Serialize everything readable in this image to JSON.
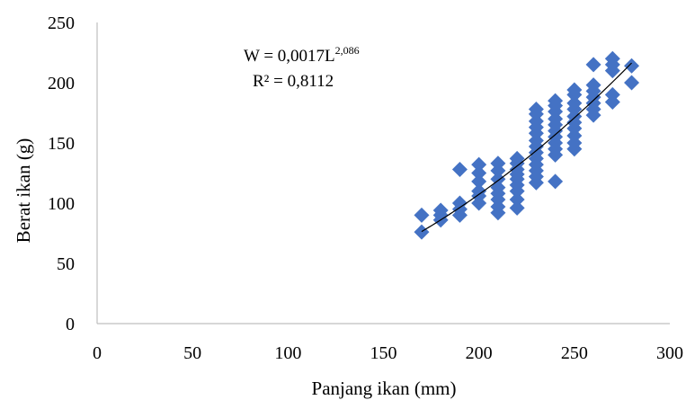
{
  "chart_data": {
    "type": "scatter",
    "xlabel": "Panjang ikan (mm)",
    "ylabel": "Berat ikan (g)",
    "xlim": [
      0,
      300
    ],
    "ylim": [
      0,
      250
    ],
    "x_ticks": [
      0,
      50,
      100,
      150,
      200,
      250,
      300
    ],
    "y_ticks": [
      0,
      50,
      100,
      150,
      200,
      250
    ],
    "x_tick_labels": [
      "0",
      "50",
      "100",
      "150",
      "200",
      "250",
      "300"
    ],
    "y_tick_labels": [
      "0",
      "50",
      "100",
      "150",
      "200",
      "250"
    ],
    "grid": false,
    "legend": "none",
    "marker": "diamond",
    "marker_color": "#4472C4",
    "trendline_color": "#000000",
    "trendline": {
      "type": "power",
      "a": 0.0017,
      "b": 2.086,
      "x_range": [
        170,
        280
      ],
      "equation_prefix": "W = 0,0017L",
      "equation_exponent": "2,086",
      "r_squared_label": "R² = 0,8112"
    },
    "points": [
      [
        170,
        76
      ],
      [
        170,
        90
      ],
      [
        180,
        86
      ],
      [
        180,
        90
      ],
      [
        180,
        94
      ],
      [
        190,
        90
      ],
      [
        190,
        95
      ],
      [
        190,
        100
      ],
      [
        190,
        128
      ],
      [
        200,
        100
      ],
      [
        200,
        106
      ],
      [
        200,
        110
      ],
      [
        200,
        118
      ],
      [
        200,
        125
      ],
      [
        200,
        132
      ],
      [
        210,
        92
      ],
      [
        210,
        97
      ],
      [
        210,
        103
      ],
      [
        210,
        108
      ],
      [
        210,
        113
      ],
      [
        210,
        120
      ],
      [
        210,
        127
      ],
      [
        210,
        133
      ],
      [
        220,
        96
      ],
      [
        220,
        103
      ],
      [
        220,
        110
      ],
      [
        220,
        115
      ],
      [
        220,
        120
      ],
      [
        220,
        124
      ],
      [
        220,
        128
      ],
      [
        220,
        133
      ],
      [
        220,
        137
      ],
      [
        230,
        117
      ],
      [
        230,
        122
      ],
      [
        230,
        127
      ],
      [
        230,
        132
      ],
      [
        230,
        137
      ],
      [
        230,
        142
      ],
      [
        230,
        147
      ],
      [
        230,
        152
      ],
      [
        230,
        158
      ],
      [
        230,
        163
      ],
      [
        230,
        168
      ],
      [
        230,
        174
      ],
      [
        230,
        178
      ],
      [
        240,
        118
      ],
      [
        240,
        140
      ],
      [
        240,
        145
      ],
      [
        240,
        150
      ],
      [
        240,
        155
      ],
      [
        240,
        160
      ],
      [
        240,
        165
      ],
      [
        240,
        170
      ],
      [
        240,
        176
      ],
      [
        240,
        181
      ],
      [
        240,
        185
      ],
      [
        250,
        145
      ],
      [
        250,
        150
      ],
      [
        250,
        156
      ],
      [
        250,
        162
      ],
      [
        250,
        167
      ],
      [
        250,
        172
      ],
      [
        250,
        178
      ],
      [
        250,
        183
      ],
      [
        250,
        190
      ],
      [
        250,
        194
      ],
      [
        260,
        173
      ],
      [
        260,
        178
      ],
      [
        260,
        183
      ],
      [
        260,
        188
      ],
      [
        260,
        193
      ],
      [
        260,
        198
      ],
      [
        260,
        215
      ],
      [
        270,
        184
      ],
      [
        270,
        190
      ],
      [
        270,
        210
      ],
      [
        270,
        215
      ],
      [
        270,
        220
      ],
      [
        280,
        200
      ],
      [
        280,
        214
      ]
    ]
  }
}
